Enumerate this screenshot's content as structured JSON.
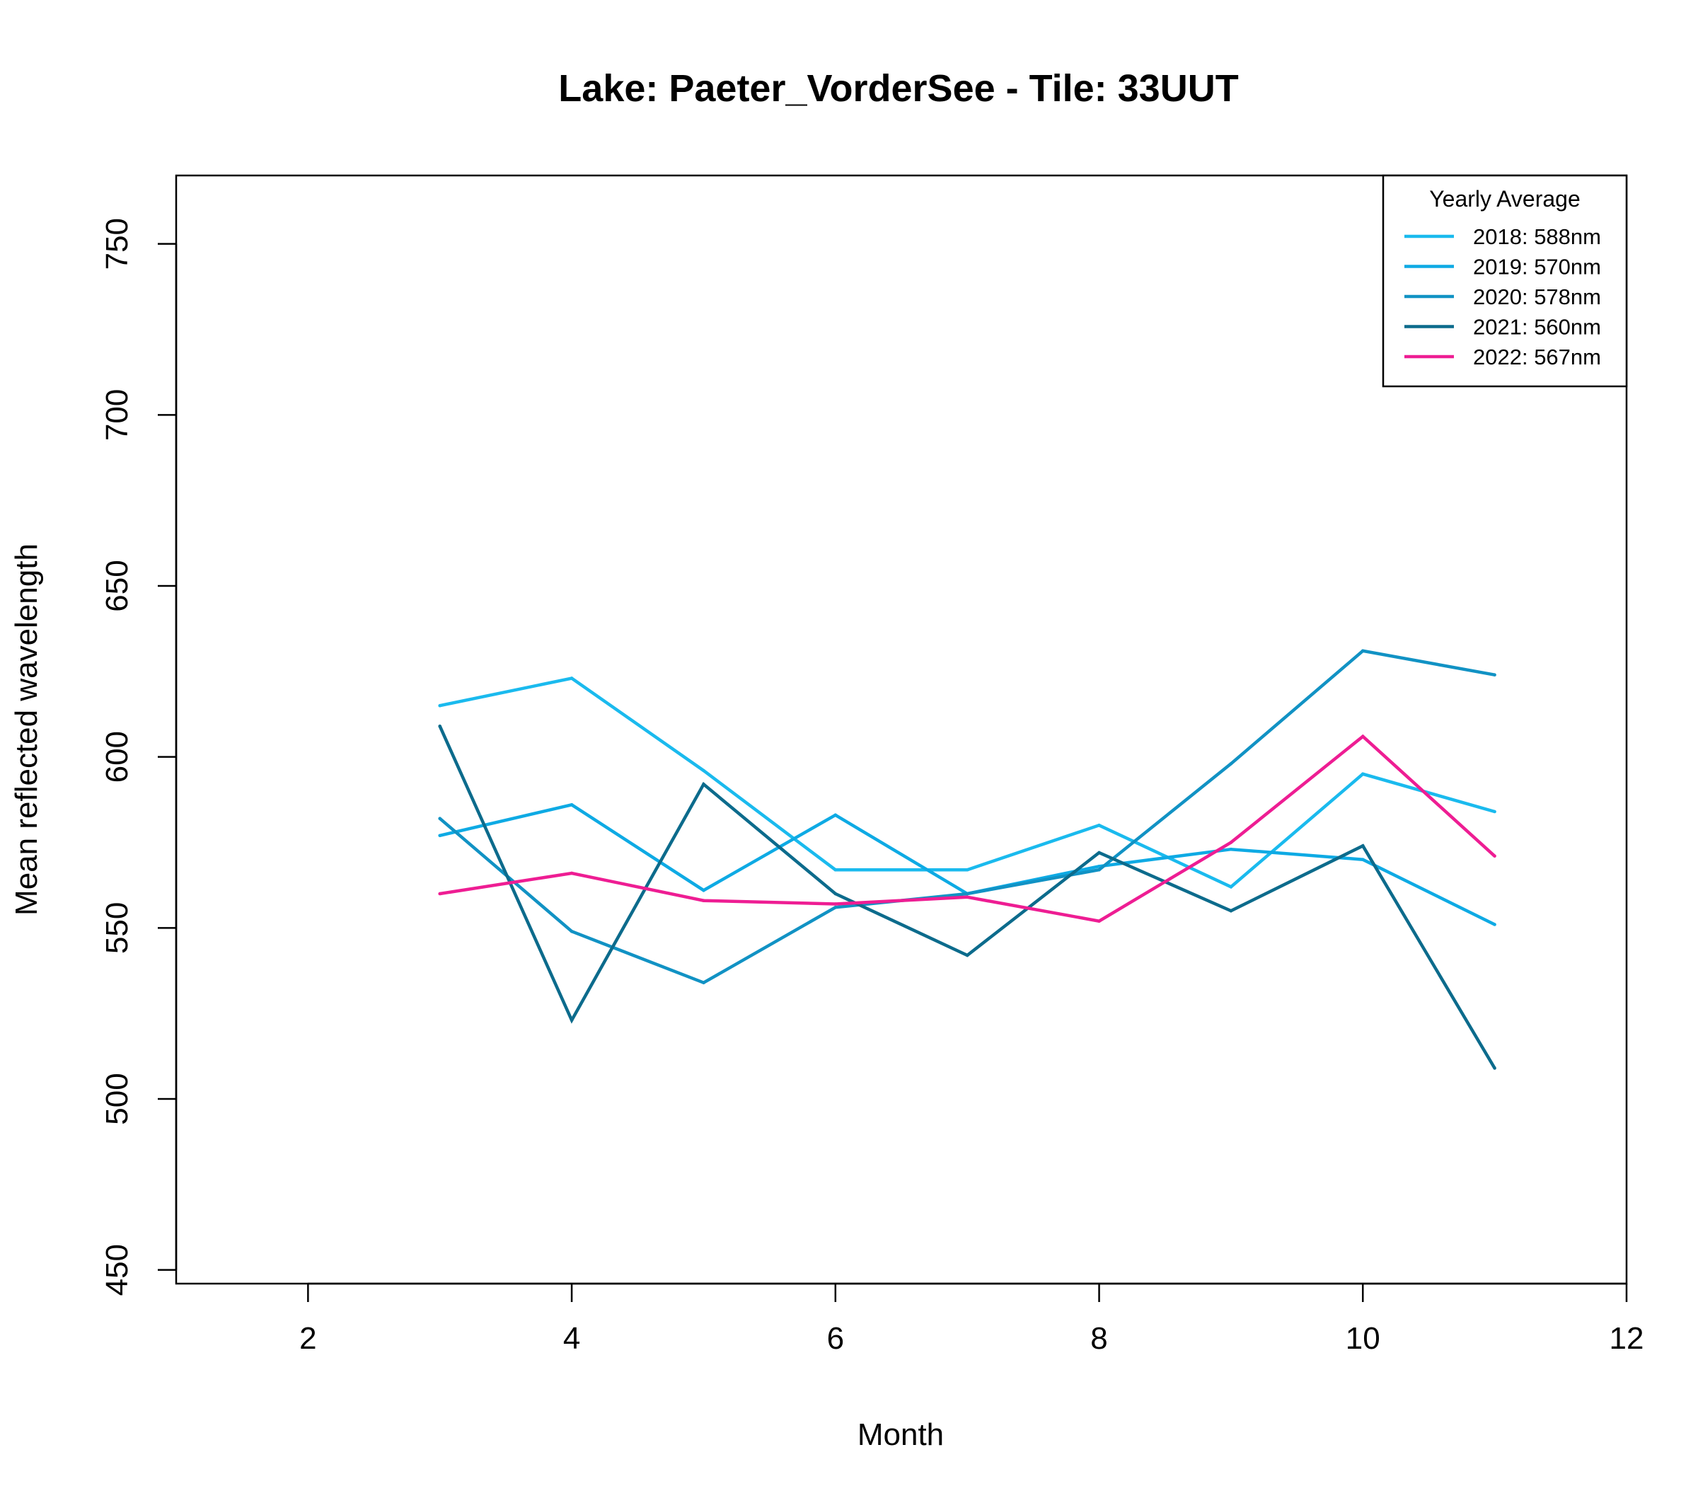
{
  "chart_data": {
    "type": "line",
    "title": "Lake: Paeter_VorderSee  - Tile: 33UUT",
    "xlabel": "Month",
    "ylabel": "Mean reflected wavelength",
    "xlim": [
      1,
      12
    ],
    "ylim": [
      446,
      770
    ],
    "xticks": [
      2,
      4,
      6,
      8,
      10,
      12
    ],
    "yticks": [
      450,
      500,
      550,
      600,
      650,
      700,
      750
    ],
    "xtick_labels": [
      "2",
      "4",
      "6",
      "8",
      "10",
      "12"
    ],
    "ytick_labels": [
      "450",
      "500",
      "550",
      "600",
      "650",
      "700",
      "750"
    ],
    "grid": false,
    "legend": {
      "title": "Yearly Average",
      "position": "top-right"
    },
    "series": [
      {
        "name": "2018: 588nm",
        "color": "#1ABAEE",
        "x": [
          3,
          4,
          5,
          6,
          7,
          8,
          9,
          10,
          11
        ],
        "y": [
          615,
          623,
          596,
          567,
          567,
          580,
          562,
          595,
          584
        ]
      },
      {
        "name": "2019: 570nm",
        "color": "#0EAAE4",
        "x": [
          3,
          4,
          5,
          6,
          7,
          8,
          9,
          10,
          11
        ],
        "y": [
          577,
          586,
          561,
          583,
          560,
          568,
          573,
          570,
          551
        ]
      },
      {
        "name": "2020: 578nm",
        "color": "#1192C4",
        "x": [
          3,
          4,
          5,
          6,
          7,
          8,
          9,
          10,
          11
        ],
        "y": [
          582,
          549,
          534,
          556,
          560,
          567,
          598,
          631,
          624
        ]
      },
      {
        "name": "2021: 560nm",
        "color": "#0C6B8C",
        "x": [
          3,
          4,
          5,
          6,
          7,
          8,
          9,
          10,
          11
        ],
        "y": [
          609,
          523,
          592,
          560,
          542,
          572,
          555,
          574,
          509
        ]
      },
      {
        "name": "2022: 567nm",
        "color": "#EE1D93",
        "x": [
          3,
          4,
          5,
          6,
          7,
          8,
          9,
          10,
          11
        ],
        "y": [
          560,
          566,
          558,
          557,
          559,
          552,
          575,
          606,
          571
        ]
      }
    ]
  }
}
